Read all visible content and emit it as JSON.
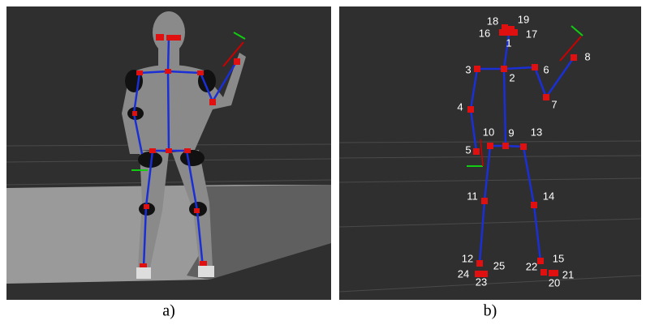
{
  "panel_a": {
    "caption": "a)"
  },
  "panel_b": {
    "caption": "b)",
    "joint_labels": [
      "1",
      "2",
      "3",
      "4",
      "5",
      "6",
      "7",
      "8",
      "9",
      "10",
      "11",
      "12",
      "13",
      "14",
      "15",
      "16",
      "17",
      "18",
      "19",
      "20",
      "21",
      "22",
      "23",
      "24",
      "25"
    ]
  }
}
